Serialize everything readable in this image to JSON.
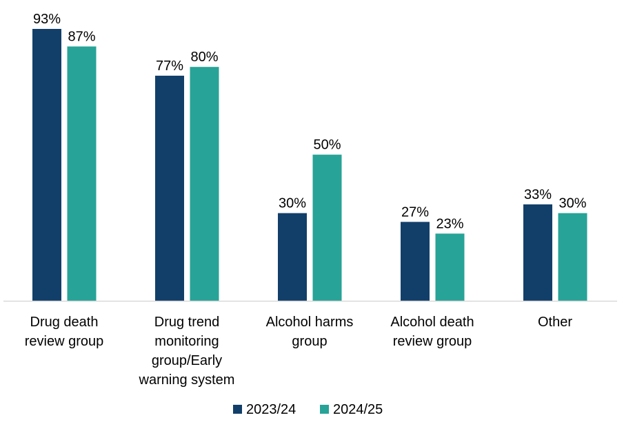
{
  "chart_data": {
    "type": "bar",
    "title": "",
    "xlabel": "",
    "ylabel": "",
    "ylim": [
      0,
      100
    ],
    "grid": false,
    "legend_position": "bottom",
    "categories": [
      [
        "Drug death",
        "review group"
      ],
      [
        "Drug trend",
        "monitoring",
        "group/Early",
        "warning system"
      ],
      [
        "Alcohol harms",
        "group"
      ],
      [
        "Alcohol death",
        "review group"
      ],
      [
        "Other"
      ]
    ],
    "series": [
      {
        "name": "2023/24",
        "color": "#123F6A",
        "values": [
          93,
          77,
          30,
          27,
          33
        ]
      },
      {
        "name": "2024/25",
        "color": "#27A397",
        "values": [
          87,
          80,
          50,
          23,
          30
        ]
      }
    ],
    "value_suffix": "%"
  }
}
